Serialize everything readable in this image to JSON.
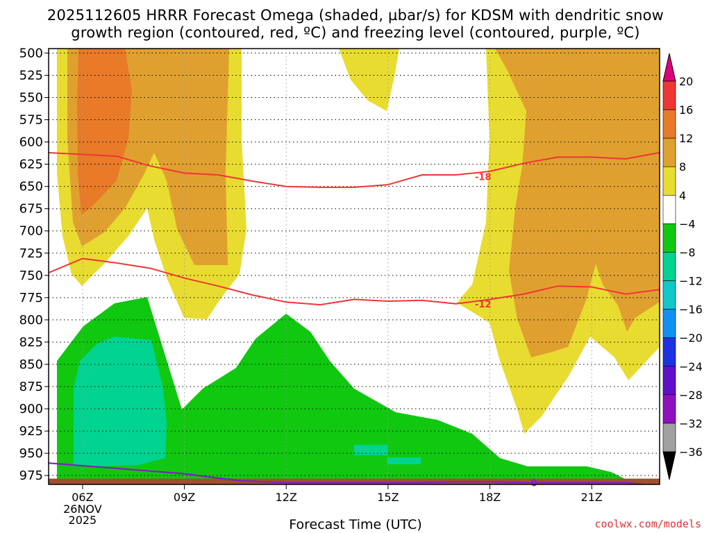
{
  "title": {
    "line1": "2025112605 HRRR Forecast Omega (shaded, µbar/s) for KDSM with dendritic snow",
    "line2": "growth region (contoured, red, ºC) and freezing level (contoured, purple, ºC)"
  },
  "credit": "coolwx.com/models",
  "chart_data": {
    "type": "heatmap",
    "xlabel": "Forecast Time (UTC)",
    "ylabel": "",
    "x_ticks": [
      {
        "hour": 6,
        "label": "06Z",
        "sub1": "26NOV",
        "sub2": "2025"
      },
      {
        "hour": 9,
        "label": "09Z"
      },
      {
        "hour": 12,
        "label": "12Z"
      },
      {
        "hour": 15,
        "label": "15Z"
      },
      {
        "hour": 18,
        "label": "18Z"
      },
      {
        "hour": 21,
        "label": "21Z"
      }
    ],
    "xlim": [
      5,
      23
    ],
    "ylim": [
      985,
      495
    ],
    "y_ticks": [
      500,
      525,
      550,
      575,
      600,
      625,
      650,
      675,
      700,
      725,
      750,
      775,
      800,
      825,
      850,
      875,
      900,
      925,
      950,
      975
    ],
    "grid": true,
    "colorbar": {
      "ticks": [
        "20",
        "16",
        "12",
        "8",
        "4",
        "−4",
        "−8",
        "−12",
        "−16",
        "−20",
        "−24",
        "−28",
        "−32",
        "−36"
      ],
      "colors_top_to_bottom": [
        "#e0007a",
        "#f03535",
        "#e87a28",
        "#e0a030",
        "#e8dc30",
        "#ffffff",
        "#10c810",
        "#00d490",
        "#10c8c8",
        "#1090f0",
        "#1e30e0",
        "#6010c8",
        "#9010c0",
        "#a0a0a0",
        "#000000"
      ]
    },
    "omega_levels": [
      {
        "name": "4 to 8",
        "color": "#e8dc30"
      },
      {
        "name": "8 to 12",
        "color": "#e0a030"
      },
      {
        "name": "12 to 16",
        "color": "#e87a28"
      },
      {
        "name": "-4 to -8",
        "color": "#10c810"
      },
      {
        "name": "-8 to -12",
        "color": "#00d490"
      }
    ],
    "isotherm_minus18": {
      "color": "#f03535",
      "label": "-18",
      "label_at": {
        "x": 17.8,
        "y": 639
      },
      "points": [
        [
          5,
          612
        ],
        [
          6,
          614
        ],
        [
          7,
          616
        ],
        [
          8,
          627
        ],
        [
          9,
          635
        ],
        [
          10,
          637
        ],
        [
          11,
          644
        ],
        [
          12,
          650
        ],
        [
          13,
          651
        ],
        [
          14,
          651
        ],
        [
          15,
          648
        ],
        [
          16,
          637
        ],
        [
          17,
          637
        ],
        [
          18,
          633
        ],
        [
          19,
          624
        ],
        [
          20,
          617
        ],
        [
          21,
          617
        ],
        [
          22,
          619
        ],
        [
          23,
          612
        ]
      ]
    },
    "isotherm_minus12": {
      "color": "#f03535",
      "label": "-12",
      "label_at": {
        "x": 17.8,
        "y": 782
      },
      "points": [
        [
          5,
          747
        ],
        [
          6,
          731
        ],
        [
          7,
          736
        ],
        [
          8,
          742
        ],
        [
          9,
          753
        ],
        [
          10,
          762
        ],
        [
          11,
          772
        ],
        [
          12,
          780
        ],
        [
          13,
          783
        ],
        [
          14,
          777
        ],
        [
          15,
          779
        ],
        [
          16,
          778
        ],
        [
          17,
          782
        ],
        [
          18,
          777
        ],
        [
          19,
          771
        ],
        [
          20,
          762
        ],
        [
          21,
          763
        ],
        [
          22,
          771
        ],
        [
          23,
          766
        ]
      ]
    },
    "freezing_level": {
      "color": "#8020c0",
      "label": "0",
      "label_at": {
        "x": 19.3,
        "y": 983
      },
      "points": [
        [
          5,
          961
        ],
        [
          6,
          964
        ],
        [
          7,
          967
        ],
        [
          8,
          970
        ],
        [
          9,
          973
        ],
        [
          10,
          978
        ],
        [
          10.7,
          981
        ],
        [
          12,
          983
        ],
        [
          13,
          983
        ],
        [
          14,
          983
        ],
        [
          15,
          983
        ],
        [
          16,
          983
        ],
        [
          17,
          982
        ],
        [
          18,
          982
        ],
        [
          19,
          983
        ],
        [
          20,
          983
        ],
        [
          21,
          983
        ],
        [
          22,
          983
        ],
        [
          23,
          987
        ]
      ]
    },
    "terrain": {
      "color": "#a0502e",
      "top_hpa": 973
    }
  }
}
